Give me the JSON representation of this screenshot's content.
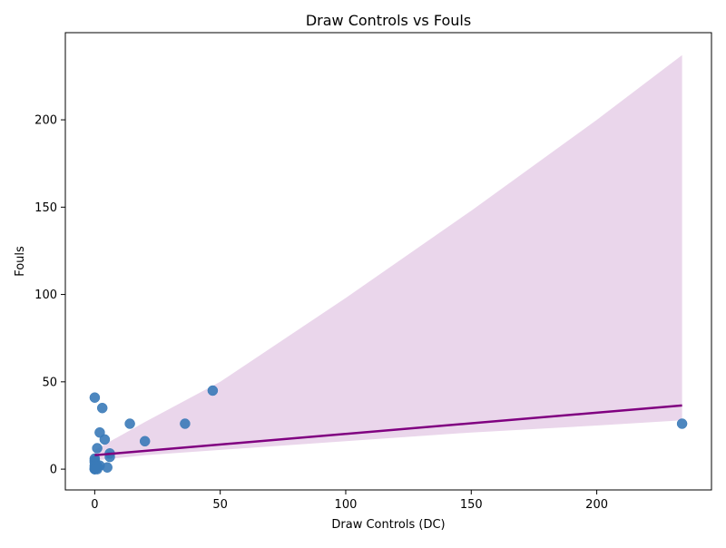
{
  "chart_data": {
    "type": "scatter",
    "title": "Draw Controls vs Fouls",
    "xlabel": "Draw Controls (DC)",
    "ylabel": "Fouls",
    "xlim": [
      -11.7,
      245.7
    ],
    "ylim": [
      -11.9,
      249.9
    ],
    "x_ticks": [
      0,
      50,
      100,
      150,
      200
    ],
    "y_ticks": [
      0,
      50,
      100,
      150,
      200
    ],
    "grid": false,
    "colors": {
      "points": "#3a7ab8",
      "regression_line": "#800080",
      "confidence_band": "#d8b4da"
    },
    "points": [
      {
        "x": 0,
        "y": 41
      },
      {
        "x": 3,
        "y": 35
      },
      {
        "x": 2,
        "y": 21
      },
      {
        "x": 4,
        "y": 17
      },
      {
        "x": 1,
        "y": 12
      },
      {
        "x": 6,
        "y": 9
      },
      {
        "x": 6,
        "y": 7
      },
      {
        "x": 0,
        "y": 6
      },
      {
        "x": 0,
        "y": 5
      },
      {
        "x": 0,
        "y": 4
      },
      {
        "x": 0,
        "y": 2
      },
      {
        "x": 1,
        "y": 2
      },
      {
        "x": 2,
        "y": 2
      },
      {
        "x": 0,
        "y": 1
      },
      {
        "x": 1,
        "y": 1
      },
      {
        "x": 5,
        "y": 1
      },
      {
        "x": 0,
        "y": 0
      },
      {
        "x": 0,
        "y": 0
      },
      {
        "x": 0,
        "y": 0
      },
      {
        "x": 1,
        "y": 0
      },
      {
        "x": 14,
        "y": 26
      },
      {
        "x": 20,
        "y": 16
      },
      {
        "x": 36,
        "y": 26
      },
      {
        "x": 47,
        "y": 45
      },
      {
        "x": 234,
        "y": 26
      }
    ],
    "regression": {
      "x": [
        0,
        234
      ],
      "y": [
        8,
        36.5
      ]
    },
    "confidence_band": {
      "x": [
        0,
        20,
        50,
        100,
        150,
        200,
        234
      ],
      "lower": [
        5,
        8,
        11,
        16,
        21,
        25,
        28
      ],
      "upper": [
        11,
        27,
        50,
        98,
        148,
        200,
        237
      ]
    }
  }
}
